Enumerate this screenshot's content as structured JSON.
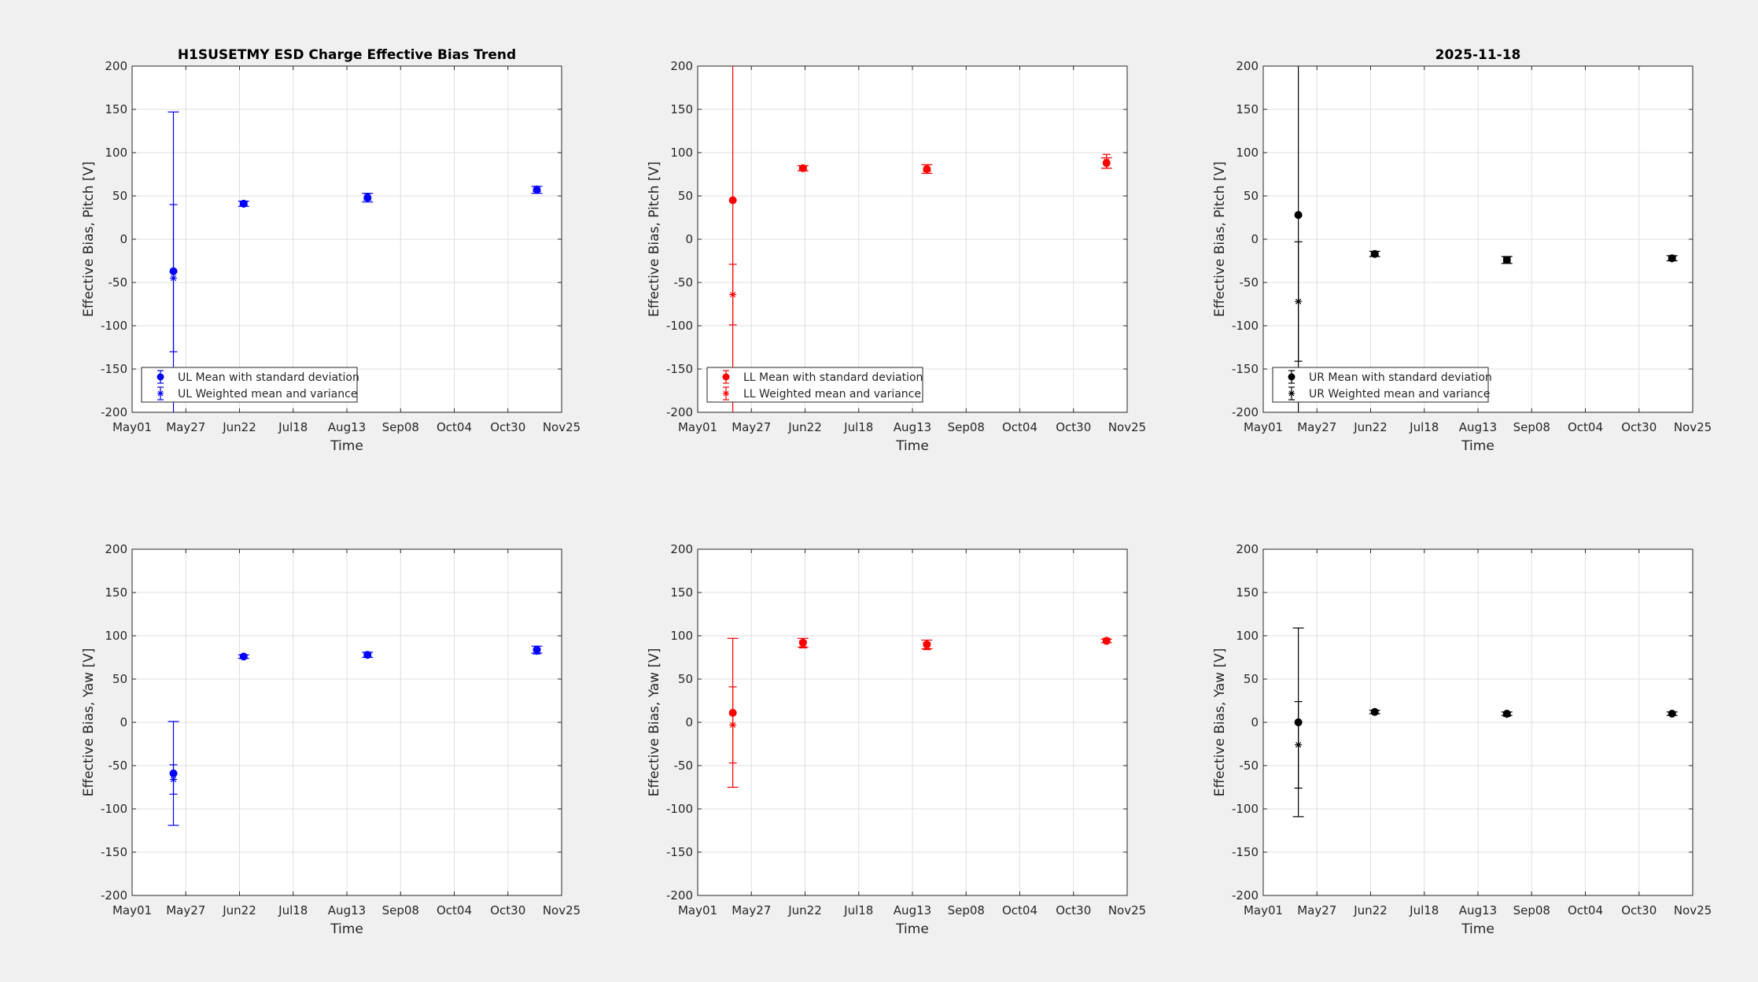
{
  "chart_data": [
    {
      "type": "scatter",
      "panel": "UL-pitch",
      "title": "H1SUSETMY ESD Charge Effective Bias Trend",
      "xlabel": "Time",
      "ylabel": "Effective Bias, Pitch [V]",
      "ylim": [
        -200,
        200
      ],
      "yticks": [
        -200,
        -150,
        -100,
        -50,
        0,
        50,
        100,
        150,
        200
      ],
      "xlim": [
        "2025-05-01",
        "2025-11-25"
      ],
      "xticks": [
        "May01",
        "May27",
        "Jun22",
        "Jul18",
        "Aug13",
        "Sep08",
        "Oct04",
        "Oct30",
        "Nov25"
      ],
      "xtick_dates": [
        "2025-05-01",
        "2025-05-27",
        "2025-06-22",
        "2025-07-18",
        "2025-08-13",
        "2025-09-08",
        "2025-10-04",
        "2025-10-30",
        "2025-11-25"
      ],
      "color": "#0000ff",
      "grid": true,
      "legend_placement": "bottom-left",
      "series": [
        {
          "name": "UL Mean with standard deviation",
          "marker": "filled-circle",
          "x": [
            "2025-05-21",
            "2025-06-24",
            "2025-08-23",
            "2025-11-13"
          ],
          "y": [
            -37,
            41,
            48,
            57
          ],
          "err": [
            184,
            3,
            5,
            4
          ]
        },
        {
          "name": "UL Weighted mean and variance",
          "marker": "asterisk",
          "x": [
            "2025-05-21",
            "2025-06-24",
            "2025-08-23",
            "2025-11-13"
          ],
          "y": [
            -45,
            41,
            49,
            58
          ],
          "err": [
            85,
            2,
            4,
            3
          ]
        }
      ]
    },
    {
      "type": "scatter",
      "panel": "LL-pitch",
      "title": "",
      "xlabel": "Time",
      "ylabel": "Effective Bias, Pitch [V]",
      "ylim": [
        -200,
        200
      ],
      "yticks": [
        -200,
        -150,
        -100,
        -50,
        0,
        50,
        100,
        150,
        200
      ],
      "xlim": [
        "2025-05-01",
        "2025-11-25"
      ],
      "xticks": [
        "May01",
        "May27",
        "Jun22",
        "Jul18",
        "Aug13",
        "Sep08",
        "Oct04",
        "Oct30",
        "Nov25"
      ],
      "xtick_dates": [
        "2025-05-01",
        "2025-05-27",
        "2025-06-22",
        "2025-07-18",
        "2025-08-13",
        "2025-09-08",
        "2025-10-04",
        "2025-10-30",
        "2025-11-25"
      ],
      "color": "#ff0000",
      "grid": true,
      "legend_placement": "bottom-left",
      "series": [
        {
          "name": "LL Mean with standard deviation",
          "marker": "filled-circle",
          "x": [
            "2025-05-18",
            "2025-06-21",
            "2025-08-20",
            "2025-11-15"
          ],
          "y": [
            45,
            82,
            81,
            88
          ],
          "err": [
            300,
            3,
            5,
            6
          ]
        },
        {
          "name": "LL Weighted mean and variance",
          "marker": "asterisk",
          "x": [
            "2025-05-18",
            "2025-06-21",
            "2025-08-20",
            "2025-11-15"
          ],
          "y": [
            -64,
            82,
            82,
            90
          ],
          "err": [
            35,
            2,
            4,
            8
          ]
        }
      ]
    },
    {
      "type": "scatter",
      "panel": "UR-pitch",
      "title": "2025-11-18",
      "xlabel": "Time",
      "ylabel": "Effective Bias, Pitch [V]",
      "ylim": [
        -200,
        200
      ],
      "yticks": [
        -200,
        -150,
        -100,
        -50,
        0,
        50,
        100,
        150,
        200
      ],
      "xlim": [
        "2025-05-01",
        "2025-11-25"
      ],
      "xticks": [
        "May01",
        "May27",
        "Jun22",
        "Jul18",
        "Aug13",
        "Sep08",
        "Oct04",
        "Oct30",
        "Nov25"
      ],
      "xtick_dates": [
        "2025-05-01",
        "2025-05-27",
        "2025-06-22",
        "2025-07-18",
        "2025-08-13",
        "2025-09-08",
        "2025-10-04",
        "2025-10-30",
        "2025-11-25"
      ],
      "color": "#000000",
      "grid": true,
      "legend_placement": "bottom-left",
      "series": [
        {
          "name": "UR Mean with standard deviation",
          "marker": "filled-circle",
          "x": [
            "2025-05-18",
            "2025-06-24",
            "2025-08-27",
            "2025-11-15"
          ],
          "y": [
            28,
            -17,
            -24,
            -22
          ],
          "err": [
            300,
            3,
            4,
            3
          ]
        },
        {
          "name": "UR Weighted mean and variance",
          "marker": "asterisk",
          "x": [
            "2025-05-18",
            "2025-06-24",
            "2025-08-27",
            "2025-11-15"
          ],
          "y": [
            -72,
            -17,
            -24,
            -22
          ],
          "err": [
            69,
            2,
            3,
            2
          ]
        }
      ]
    },
    {
      "type": "scatter",
      "panel": "UL-yaw",
      "title": "",
      "xlabel": "Time",
      "ylabel": "Effective Bias, Yaw [V]",
      "ylim": [
        -200,
        200
      ],
      "yticks": [
        -200,
        -150,
        -100,
        -50,
        0,
        50,
        100,
        150,
        200
      ],
      "xlim": [
        "2025-05-01",
        "2025-11-25"
      ],
      "xticks": [
        "May01",
        "May27",
        "Jun22",
        "Jul18",
        "Aug13",
        "Sep08",
        "Oct04",
        "Oct30",
        "Nov25"
      ],
      "xtick_dates": [
        "2025-05-01",
        "2025-05-27",
        "2025-06-22",
        "2025-07-18",
        "2025-08-13",
        "2025-09-08",
        "2025-10-04",
        "2025-10-30",
        "2025-11-25"
      ],
      "color": "#0000ff",
      "grid": true,
      "series": [
        {
          "marker": "filled-circle",
          "x": [
            "2025-05-21",
            "2025-06-24",
            "2025-08-23",
            "2025-11-13"
          ],
          "y": [
            -59,
            76,
            78,
            84
          ],
          "err": [
            60,
            2,
            3,
            4
          ]
        },
        {
          "marker": "asterisk",
          "x": [
            "2025-05-21",
            "2025-06-24",
            "2025-08-23",
            "2025-11-13"
          ],
          "y": [
            -66,
            76,
            78,
            82
          ],
          "err": [
            17,
            2,
            2,
            3
          ]
        }
      ]
    },
    {
      "type": "scatter",
      "panel": "LL-yaw",
      "title": "",
      "xlabel": "Time",
      "ylabel": "Effective Bias, Yaw [V]",
      "ylim": [
        -200,
        200
      ],
      "yticks": [
        -200,
        -150,
        -100,
        -50,
        0,
        50,
        100,
        150,
        200
      ],
      "xlim": [
        "2025-05-01",
        "2025-11-25"
      ],
      "xticks": [
        "May01",
        "May27",
        "Jun22",
        "Jul18",
        "Aug13",
        "Sep08",
        "Oct04",
        "Oct30",
        "Nov25"
      ],
      "xtick_dates": [
        "2025-05-01",
        "2025-05-27",
        "2025-06-22",
        "2025-07-18",
        "2025-08-13",
        "2025-09-08",
        "2025-10-04",
        "2025-10-30",
        "2025-11-25"
      ],
      "color": "#ff0000",
      "grid": true,
      "series": [
        {
          "marker": "filled-circle",
          "x": [
            "2025-05-18",
            "2025-06-21",
            "2025-08-20",
            "2025-11-15"
          ],
          "y": [
            11,
            92,
            90,
            94
          ],
          "err": [
            86,
            5,
            5,
            2
          ]
        },
        {
          "marker": "asterisk",
          "x": [
            "2025-05-18",
            "2025-06-21",
            "2025-08-20",
            "2025-11-15"
          ],
          "y": [
            -3,
            90,
            88,
            95
          ],
          "err": [
            44,
            4,
            4,
            2
          ]
        }
      ]
    },
    {
      "type": "scatter",
      "panel": "UR-yaw",
      "title": "",
      "xlabel": "Time",
      "ylabel": "Effective Bias, Yaw [V]",
      "ylim": [
        -200,
        200
      ],
      "yticks": [
        -200,
        -150,
        -100,
        -50,
        0,
        50,
        100,
        150,
        200
      ],
      "xlim": [
        "2025-05-01",
        "2025-11-25"
      ],
      "xticks": [
        "May01",
        "May27",
        "Jun22",
        "Jul18",
        "Aug13",
        "Sep08",
        "Oct04",
        "Oct30",
        "Nov25"
      ],
      "xtick_dates": [
        "2025-05-01",
        "2025-05-27",
        "2025-06-22",
        "2025-07-18",
        "2025-08-13",
        "2025-09-08",
        "2025-10-04",
        "2025-10-30",
        "2025-11-25"
      ],
      "color": "#000000",
      "grid": true,
      "series": [
        {
          "marker": "filled-circle",
          "x": [
            "2025-05-18",
            "2025-06-24",
            "2025-08-27",
            "2025-11-15"
          ],
          "y": [
            0,
            12,
            10,
            10
          ],
          "err": [
            109,
            2,
            2,
            2
          ]
        },
        {
          "marker": "asterisk",
          "x": [
            "2025-05-18",
            "2025-06-24",
            "2025-08-27",
            "2025-11-15"
          ],
          "y": [
            -26,
            12,
            9,
            10
          ],
          "err": [
            50,
            2,
            2,
            2
          ]
        }
      ]
    }
  ]
}
